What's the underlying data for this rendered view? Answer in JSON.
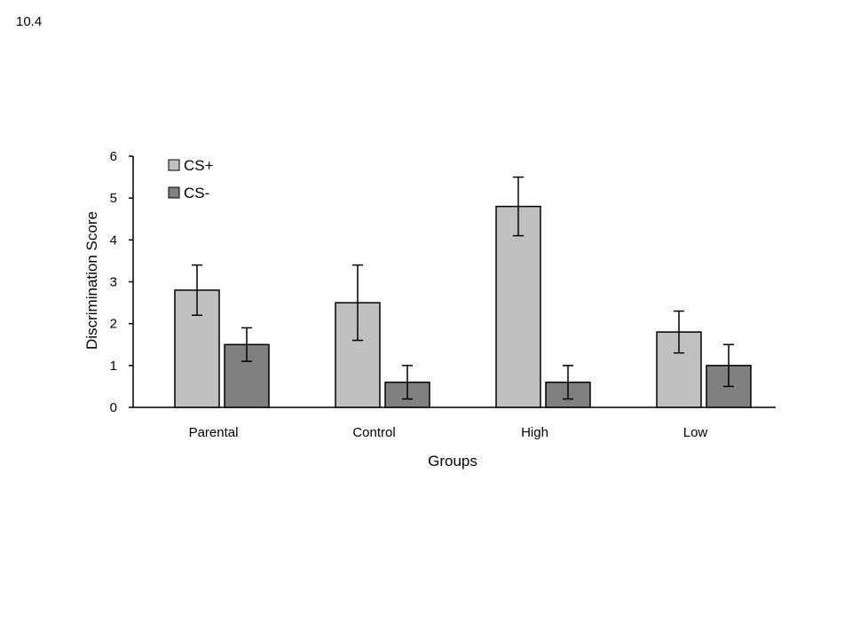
{
  "slide_number": "10.4",
  "chart_data": {
    "type": "bar",
    "title": "",
    "xlabel": "Groups",
    "ylabel": "Discrimination Score",
    "categories": [
      "Parental",
      "Control",
      "High",
      "Low"
    ],
    "ylim": [
      0,
      6
    ],
    "yticks": [
      0,
      1,
      2,
      3,
      4,
      5,
      6
    ],
    "grid": false,
    "legend_position": "top-left",
    "series": [
      {
        "name": "CS+",
        "color": "#c0c0c0",
        "values": [
          2.8,
          2.5,
          4.8,
          1.8
        ],
        "error_lower": [
          2.2,
          1.6,
          4.1,
          1.3
        ],
        "error_upper": [
          3.4,
          3.4,
          5.5,
          2.3
        ]
      },
      {
        "name": "CS-",
        "color": "#808080",
        "values": [
          1.5,
          0.6,
          0.6,
          1.0
        ],
        "error_lower": [
          1.1,
          0.2,
          0.2,
          0.5
        ],
        "error_upper": [
          1.9,
          1.0,
          1.0,
          1.5
        ]
      }
    ]
  }
}
